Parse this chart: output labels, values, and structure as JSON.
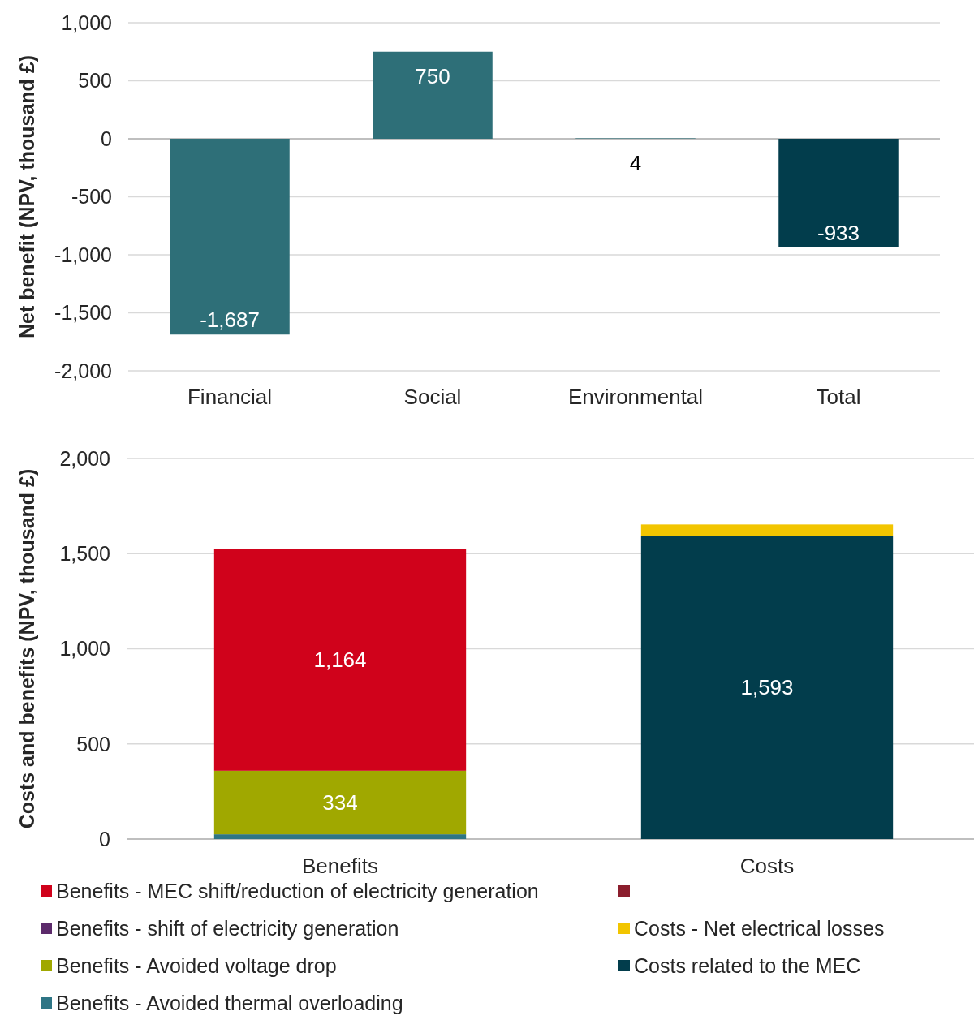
{
  "chart_data": [
    {
      "type": "bar",
      "ylabel": "Net benefit (NPV, thousand £)",
      "categories": [
        "Financial",
        "Social",
        "Environmental",
        "Total"
      ],
      "values": [
        -1687,
        750,
        4,
        -933
      ],
      "colors": [
        "#2e6f78",
        "#2e6f78",
        "#2e6f78",
        "#023d4c"
      ],
      "ylim": [
        -2000,
        1000
      ],
      "yticks": [
        {
          "value": -2000,
          "label": "-2,000"
        },
        {
          "value": -1500,
          "label": "-1,500"
        },
        {
          "value": -1000,
          "label": "-1,000"
        },
        -500,
        0,
        500,
        {
          "value": 1000,
          "label": "1,000"
        }
      ],
      "grid": "y",
      "value_labels": [
        "-1,687",
        "750",
        "4",
        "-933"
      ]
    },
    {
      "type": "bar",
      "ylabel": "Costs and benefits (NPV, thousand £)",
      "categories": [
        "Benefits",
        "Costs"
      ],
      "stacked": true,
      "ylim": [
        0,
        2000
      ],
      "yticks": [
        0,
        500,
        {
          "value": 1000,
          "label": "1,000"
        },
        {
          "value": 1500,
          "label": "1,500"
        },
        {
          "value": 2000,
          "label": "2,000"
        }
      ],
      "grid": "y",
      "legend": "bottom",
      "series": [
        {
          "name": "Benefits - Avoided thermal overloading",
          "color": "#2e7585",
          "values": [
            25,
            null
          ]
        },
        {
          "name": "Benefits - Avoided voltage drop",
          "color": "#a0a800",
          "values": [
            334,
            null
          ],
          "value_labels": [
            "334",
            null
          ]
        },
        {
          "name": "Benefits - shift of electricity generation",
          "color": "#5c2a6b",
          "values": [
            0,
            null
          ]
        },
        {
          "name": "Benefits - MEC shift/reduction of electricity generation",
          "color": "#d0021b",
          "values": [
            1164,
            null
          ],
          "value_labels": [
            "1,164",
            null
          ]
        },
        {
          "name": "Costs related to the MEC",
          "color": "#023d4c",
          "values": [
            null,
            1593
          ],
          "value_labels": [
            null,
            "1,593"
          ]
        },
        {
          "name": "Costs - Net electrical losses",
          "color": "#f2c500",
          "values": [
            null,
            60
          ]
        },
        {
          "color": "#8b1e2d",
          "values": [
            null,
            0
          ]
        }
      ]
    }
  ]
}
